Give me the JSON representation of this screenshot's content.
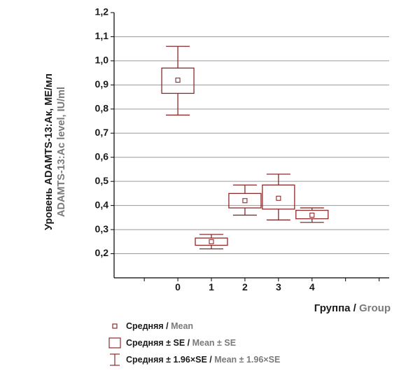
{
  "colors": {
    "box": "#8b2a2a",
    "grid": "#9a9a9a",
    "axis": "#000000",
    "english_text": "#7a7a7a",
    "russian_text": "#1a1a1a"
  },
  "chart_data": {
    "type": "box",
    "x": [
      0,
      1,
      2,
      3,
      4
    ],
    "xlim": [
      -1.9,
      6.3
    ],
    "ylim": [
      0.1,
      1.2
    ],
    "yticks": [
      0.2,
      0.3,
      0.4,
      0.5,
      0.6,
      0.7,
      0.8,
      0.9,
      1.0,
      1.1,
      1.2
    ],
    "ytick_labels": [
      "0,2",
      "0,3",
      "0,4",
      "0,5",
      "0,6",
      "0,7",
      "0,8",
      "0,9",
      "1,0",
      "1,1",
      "1,2"
    ],
    "xtick_labels": [
      "0",
      "1",
      "2",
      "3",
      "4"
    ],
    "grid": "horizontal",
    "ylabel_ru": "Уровень ADAMTS-13:Ак, МЕ/мл",
    "ylabel_en": "ADAMTS-13:Ac level, IU/ml",
    "xlabel_ru": "Группа",
    "xlabel_sep": " / ",
    "xlabel_en": "Group",
    "series": [
      {
        "x": 0,
        "mean": 0.92,
        "se_low": 0.865,
        "se_high": 0.97,
        "ci_low": 0.775,
        "ci_high": 1.06
      },
      {
        "x": 1,
        "mean": 0.25,
        "se_low": 0.235,
        "se_high": 0.265,
        "ci_low": 0.22,
        "ci_high": 0.28
      },
      {
        "x": 2,
        "mean": 0.42,
        "se_low": 0.39,
        "se_high": 0.45,
        "ci_low": 0.36,
        "ci_high": 0.485
      },
      {
        "x": 3,
        "mean": 0.43,
        "se_low": 0.385,
        "se_high": 0.485,
        "ci_low": 0.34,
        "ci_high": 0.53
      },
      {
        "x": 4,
        "mean": 0.36,
        "se_low": 0.345,
        "se_high": 0.38,
        "ci_low": 0.33,
        "ci_high": 0.39
      }
    ]
  },
  "legend": [
    {
      "symbol": "mean-marker",
      "ru": "Средняя",
      "sep": " / ",
      "en": "Mean"
    },
    {
      "symbol": "se-box",
      "ru": "Средняя ± SE",
      "sep": " / ",
      "en": "Mean ± SE"
    },
    {
      "symbol": "ci-whisker",
      "ru": "Средняя ± 1.96×SE",
      "sep": " / ",
      "en": "Mean ± 1.96×SE"
    }
  ]
}
